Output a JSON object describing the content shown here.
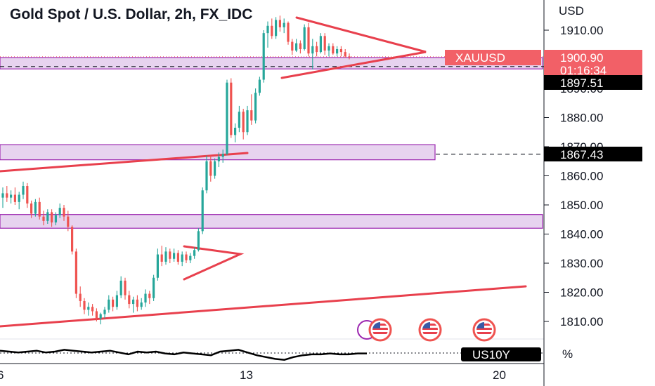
{
  "chart_title": "Gold Spot / U.S. Dollar, 2h, FX_IDC",
  "price_axis": {
    "currency_label": "USD",
    "ticks": [
      "1910.00",
      "1890.00",
      "1880.00",
      "1870.00",
      "1860.00",
      "1850.00",
      "1840.00",
      "1830.00",
      "1820.00",
      "1810.00"
    ]
  },
  "price_tags": {
    "symbol": "XAUUSD",
    "last_price": "1900.90",
    "countdown": "01:16:34",
    "level_1": "1897.51",
    "level_2": "1867.43"
  },
  "time_axis": {
    "labels": [
      "6",
      "13",
      "20"
    ]
  },
  "sub_pane": {
    "symbol": "US10Y",
    "unit": "%"
  },
  "colors": {
    "up": "#26a69a",
    "down": "#ef5350",
    "trendline": "#e8404d",
    "zone_fill": "#e7d3ef",
    "zone_border": "#9c27b0",
    "last_price_tag": "#f26067",
    "label_bg": "#000000"
  },
  "icons": [
    "event-icon",
    "flag-icon",
    "flag-icon",
    "flag-icon"
  ],
  "chart_data": {
    "type": "candlestick",
    "title": "Gold Spot / U.S. Dollar, 2h, FX_IDC",
    "ylabel": "USD",
    "ylim": [
      1806,
      1920
    ],
    "candles": [
      {
        "o": 1852.5,
        "h": 1856,
        "l": 1849,
        "c": 1854
      },
      {
        "o": 1854,
        "h": 1856.5,
        "l": 1851,
        "c": 1852.5
      },
      {
        "o": 1852.5,
        "h": 1855,
        "l": 1850.5,
        "c": 1853.5
      },
      {
        "o": 1853.5,
        "h": 1856,
        "l": 1850,
        "c": 1851
      },
      {
        "o": 1851,
        "h": 1854.5,
        "l": 1848.5,
        "c": 1853.5
      },
      {
        "o": 1853.5,
        "h": 1858,
        "l": 1852,
        "c": 1856.5
      },
      {
        "o": 1856.5,
        "h": 1857.5,
        "l": 1849,
        "c": 1850.5
      },
      {
        "o": 1850.5,
        "h": 1851.5,
        "l": 1845.5,
        "c": 1847
      },
      {
        "o": 1847,
        "h": 1852,
        "l": 1846,
        "c": 1851
      },
      {
        "o": 1851,
        "h": 1852.5,
        "l": 1845,
        "c": 1846
      },
      {
        "o": 1846,
        "h": 1848,
        "l": 1843,
        "c": 1844.5
      },
      {
        "o": 1844.5,
        "h": 1848.5,
        "l": 1843.5,
        "c": 1847.5
      },
      {
        "o": 1847.5,
        "h": 1848.5,
        "l": 1842.5,
        "c": 1844
      },
      {
        "o": 1844,
        "h": 1847.5,
        "l": 1843,
        "c": 1846.5
      },
      {
        "o": 1846.5,
        "h": 1850.5,
        "l": 1845.5,
        "c": 1849
      },
      {
        "o": 1849,
        "h": 1850,
        "l": 1844.5,
        "c": 1846
      },
      {
        "o": 1846,
        "h": 1848,
        "l": 1841,
        "c": 1842.5
      },
      {
        "o": 1842.5,
        "h": 1843,
        "l": 1833,
        "c": 1834
      },
      {
        "o": 1834,
        "h": 1835,
        "l": 1818,
        "c": 1819.5
      },
      {
        "o": 1819.5,
        "h": 1822,
        "l": 1815,
        "c": 1817
      },
      {
        "o": 1817,
        "h": 1818,
        "l": 1812.5,
        "c": 1814
      },
      {
        "o": 1814,
        "h": 1816.5,
        "l": 1812,
        "c": 1815
      },
      {
        "o": 1815,
        "h": 1816,
        "l": 1812,
        "c": 1813.5
      },
      {
        "o": 1813.5,
        "h": 1814.5,
        "l": 1810,
        "c": 1811
      },
      {
        "o": 1811,
        "h": 1813,
        "l": 1809,
        "c": 1812.5
      },
      {
        "o": 1812.5,
        "h": 1815,
        "l": 1811,
        "c": 1814
      },
      {
        "o": 1814,
        "h": 1819,
        "l": 1813,
        "c": 1817.5
      },
      {
        "o": 1817.5,
        "h": 1818.5,
        "l": 1813.5,
        "c": 1815
      },
      {
        "o": 1815,
        "h": 1820.5,
        "l": 1814,
        "c": 1819
      },
      {
        "o": 1819,
        "h": 1825.5,
        "l": 1818,
        "c": 1824
      },
      {
        "o": 1824,
        "h": 1825,
        "l": 1817.5,
        "c": 1819
      },
      {
        "o": 1819,
        "h": 1820.5,
        "l": 1814.5,
        "c": 1816
      },
      {
        "o": 1816,
        "h": 1818.5,
        "l": 1813,
        "c": 1817.5
      },
      {
        "o": 1817.5,
        "h": 1819,
        "l": 1813.5,
        "c": 1815
      },
      {
        "o": 1815,
        "h": 1818,
        "l": 1814,
        "c": 1816.5
      },
      {
        "o": 1816.5,
        "h": 1821,
        "l": 1815,
        "c": 1819.5
      },
      {
        "o": 1819.5,
        "h": 1820.5,
        "l": 1816,
        "c": 1818
      },
      {
        "o": 1818,
        "h": 1826,
        "l": 1817,
        "c": 1825
      },
      {
        "o": 1825,
        "h": 1835,
        "l": 1824,
        "c": 1833
      },
      {
        "o": 1833,
        "h": 1836,
        "l": 1829,
        "c": 1830.5
      },
      {
        "o": 1830.5,
        "h": 1835.5,
        "l": 1829.5,
        "c": 1834
      },
      {
        "o": 1834,
        "h": 1835,
        "l": 1830,
        "c": 1831.5
      },
      {
        "o": 1831.5,
        "h": 1835,
        "l": 1830.5,
        "c": 1833.5
      },
      {
        "o": 1833.5,
        "h": 1834.5,
        "l": 1829.5,
        "c": 1830.5
      },
      {
        "o": 1830.5,
        "h": 1834,
        "l": 1829,
        "c": 1833
      },
      {
        "o": 1833,
        "h": 1834,
        "l": 1830,
        "c": 1831
      },
      {
        "o": 1831,
        "h": 1833.5,
        "l": 1830,
        "c": 1832.5
      },
      {
        "o": 1832.5,
        "h": 1835.5,
        "l": 1831.5,
        "c": 1834.5
      },
      {
        "o": 1834.5,
        "h": 1842,
        "l": 1834,
        "c": 1841
      },
      {
        "o": 1841,
        "h": 1856,
        "l": 1840,
        "c": 1855
      },
      {
        "o": 1855,
        "h": 1867,
        "l": 1854,
        "c": 1865
      },
      {
        "o": 1865,
        "h": 1867,
        "l": 1858,
        "c": 1860
      },
      {
        "o": 1860,
        "h": 1866,
        "l": 1859,
        "c": 1865
      },
      {
        "o": 1865,
        "h": 1868,
        "l": 1863,
        "c": 1866.5
      },
      {
        "o": 1866.5,
        "h": 1869,
        "l": 1864.5,
        "c": 1867.5
      },
      {
        "o": 1867.5,
        "h": 1893,
        "l": 1867,
        "c": 1892
      },
      {
        "o": 1892,
        "h": 1893.5,
        "l": 1873,
        "c": 1874
      },
      {
        "o": 1874,
        "h": 1878,
        "l": 1871.5,
        "c": 1876.5
      },
      {
        "o": 1876.5,
        "h": 1884,
        "l": 1875,
        "c": 1882
      },
      {
        "o": 1882,
        "h": 1883,
        "l": 1872.5,
        "c": 1875
      },
      {
        "o": 1875,
        "h": 1884,
        "l": 1874,
        "c": 1882.5
      },
      {
        "o": 1882.5,
        "h": 1888,
        "l": 1877.5,
        "c": 1879
      },
      {
        "o": 1879,
        "h": 1890,
        "l": 1878,
        "c": 1888.5
      },
      {
        "o": 1888.5,
        "h": 1894,
        "l": 1887.5,
        "c": 1893
      },
      {
        "o": 1893,
        "h": 1910,
        "l": 1892,
        "c": 1909
      },
      {
        "o": 1909,
        "h": 1913,
        "l": 1904,
        "c": 1911.5
      },
      {
        "o": 1911.5,
        "h": 1914,
        "l": 1907,
        "c": 1908
      },
      {
        "o": 1908,
        "h": 1914.5,
        "l": 1907,
        "c": 1913.5
      },
      {
        "o": 1913.5,
        "h": 1915,
        "l": 1909.5,
        "c": 1911
      },
      {
        "o": 1911,
        "h": 1914,
        "l": 1909,
        "c": 1912.5
      },
      {
        "o": 1912.5,
        "h": 1913,
        "l": 1905,
        "c": 1906
      },
      {
        "o": 1906,
        "h": 1907,
        "l": 1901.5,
        "c": 1903
      },
      {
        "o": 1903,
        "h": 1907,
        "l": 1902.5,
        "c": 1905.5
      },
      {
        "o": 1905.5,
        "h": 1906.5,
        "l": 1902,
        "c": 1903.5
      },
      {
        "o": 1903.5,
        "h": 1912,
        "l": 1903,
        "c": 1911
      },
      {
        "o": 1911,
        "h": 1912.5,
        "l": 1901,
        "c": 1902
      },
      {
        "o": 1902,
        "h": 1907,
        "l": 1896.5,
        "c": 1904.5
      },
      {
        "o": 1904.5,
        "h": 1906,
        "l": 1901,
        "c": 1902.5
      },
      {
        "o": 1902.5,
        "h": 1909,
        "l": 1902,
        "c": 1908
      },
      {
        "o": 1908,
        "h": 1909,
        "l": 1901.5,
        "c": 1903
      },
      {
        "o": 1903,
        "h": 1905.5,
        "l": 1901,
        "c": 1904.5
      },
      {
        "o": 1904.5,
        "h": 1905.5,
        "l": 1901.5,
        "c": 1902
      },
      {
        "o": 1902,
        "h": 1904.5,
        "l": 1901,
        "c": 1903.5
      },
      {
        "o": 1903.5,
        "h": 1904.5,
        "l": 1901,
        "c": 1902.5
      },
      {
        "o": 1902.5,
        "h": 1903.5,
        "l": 1900.5,
        "c": 1901
      },
      {
        "o": 1901,
        "h": 1902,
        "l": 1900,
        "c": 1900.9
      }
    ],
    "zones": [
      {
        "from": 1896.7,
        "to": 1900.6
      },
      {
        "from": 1865.5,
        "to": 1870.7
      },
      {
        "from": 1842,
        "to": 1846.7
      }
    ],
    "levels": [
      1897.51,
      1867.43,
      1900.9
    ],
    "sub_series_US10Y": [
      0.55,
      0.5,
      0.45,
      0.5,
      0.55,
      0.45,
      0.5,
      0.6,
      0.55,
      0.5,
      0.45,
      0.5,
      0.55,
      0.45,
      0.35,
      0.5,
      0.45,
      0.5,
      0.4,
      0.35,
      0.45,
      0.4,
      0.35,
      0.3,
      0.5,
      0.55,
      0.6,
      0.45,
      0.3,
      0.2,
      0.1,
      0.05,
      0.2,
      0.3,
      0.35,
      0.35,
      0.4,
      0.35,
      0.35,
      0.4,
      0.4
    ]
  }
}
